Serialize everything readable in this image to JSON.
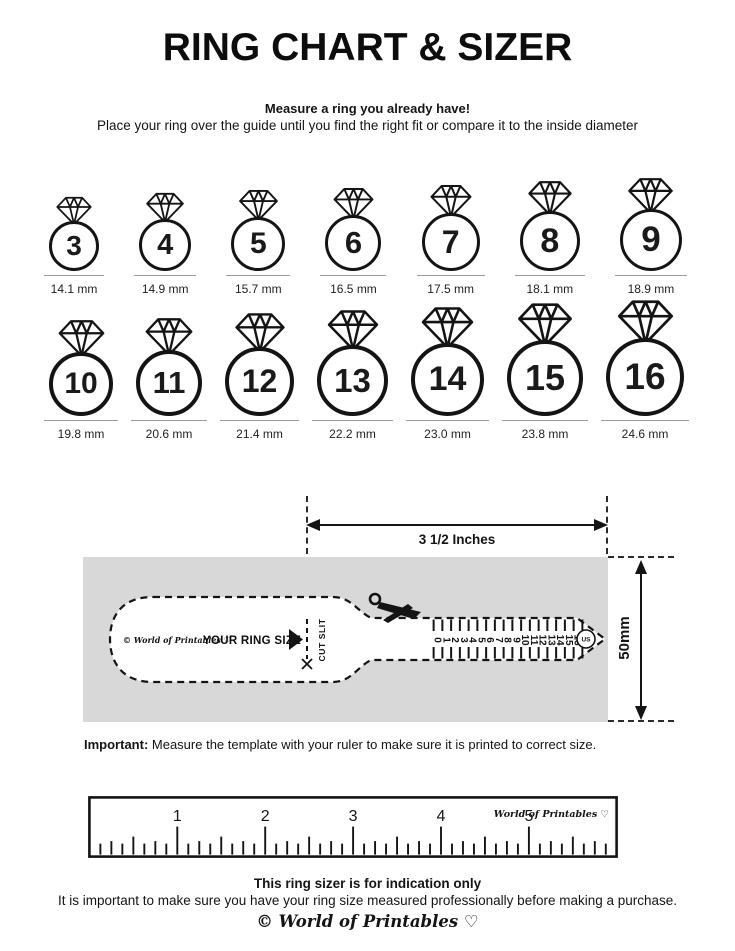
{
  "title": "RING CHART & SIZER",
  "intro": {
    "heading": "Measure a ring you already have!",
    "text": "Place your ring over the guide until you find the right fit or compare it to the inside diameter"
  },
  "ring_chart": {
    "rows": [
      [
        {
          "size": "3",
          "diameter": "14.1 mm"
        },
        {
          "size": "4",
          "diameter": "14.9 mm"
        },
        {
          "size": "5",
          "diameter": "15.7 mm"
        },
        {
          "size": "6",
          "diameter": "16.5 mm"
        },
        {
          "size": "7",
          "diameter": "17.5 mm"
        },
        {
          "size": "8",
          "diameter": "18.1 mm"
        },
        {
          "size": "9",
          "diameter": "18.9 mm"
        }
      ],
      [
        {
          "size": "10",
          "diameter": "19.8 mm"
        },
        {
          "size": "11",
          "diameter": "20.6 mm"
        },
        {
          "size": "12",
          "diameter": "21.4 mm"
        },
        {
          "size": "13",
          "diameter": "22.2 mm"
        },
        {
          "size": "14",
          "diameter": "23.0 mm"
        },
        {
          "size": "15",
          "diameter": "23.8 mm"
        },
        {
          "size": "16",
          "diameter": "24.6 mm"
        }
      ]
    ]
  },
  "sizer": {
    "width_label": "3 1/2 Inches",
    "height_label": "50mm",
    "logo": "© World of Printables ♡",
    "your_ring_size_label": "YOUR RING SIZE",
    "cut_slit_label": "CUT SLIT",
    "scale_numbers": [
      "0",
      "1",
      "2",
      "3",
      "4",
      "5",
      "6",
      "7",
      "8",
      "9",
      "10",
      "11",
      "12",
      "13",
      "14",
      "15",
      "16"
    ],
    "us_label": "US"
  },
  "important": {
    "label": "Important:",
    "text": " Measure the template with your ruler to make sure it is printed to correct size."
  },
  "ruler": {
    "numbers": [
      "1",
      "2",
      "3",
      "4",
      "5"
    ],
    "logo": "World of Printables ♡"
  },
  "footer": {
    "heading": "This ring sizer is for indication only",
    "text": "It is important to make sure you have your ring size measured professionally before making a purchase.",
    "logo": "© World of Printables ♡"
  },
  "colors": {
    "ink": "#141414",
    "gray_box": "#d8d8d8",
    "underline": "#9a9a9a"
  }
}
